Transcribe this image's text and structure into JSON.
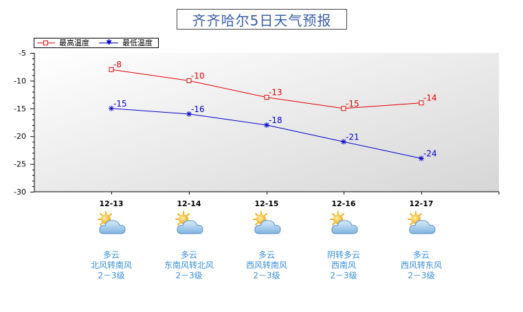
{
  "title": "齐齐哈尔5日天气预报",
  "chart_data": {
    "type": "line",
    "categories": [
      "12-13",
      "12-14",
      "12-15",
      "12-16",
      "12-17"
    ],
    "ylim": [
      -30,
      -5
    ],
    "yticks": [
      -5,
      -10,
      -15,
      -20,
      -25,
      -30
    ],
    "grid": false,
    "legend_position": "top-left",
    "series": [
      {
        "name": "最高温度",
        "values": [
          -8,
          -10,
          -13,
          -15,
          -14
        ],
        "color": "#e00000",
        "marker": "square"
      },
      {
        "name": "最低温度",
        "values": [
          -15,
          -16,
          -18,
          -21,
          -24
        ],
        "color": "#0000cc",
        "marker": "asterisk"
      }
    ]
  },
  "forecast": [
    {
      "date": "12-13",
      "icon": "partly-cloudy-icon",
      "weather": "多云",
      "wind": "北风转南风",
      "level": "2－3级"
    },
    {
      "date": "12-14",
      "icon": "partly-cloudy-icon",
      "weather": "多云",
      "wind": "东南风转北风",
      "level": "2－3级"
    },
    {
      "date": "12-15",
      "icon": "partly-cloudy-icon",
      "weather": "多云",
      "wind": "西风转南风",
      "level": "2－3级"
    },
    {
      "date": "12-16",
      "icon": "partly-cloudy-icon",
      "weather": "阴转多云",
      "wind": "西南风",
      "level": "2－3级"
    },
    {
      "date": "12-17",
      "icon": "partly-cloudy-icon",
      "weather": "多云",
      "wind": "西风转东风",
      "level": "2－3级"
    }
  ]
}
